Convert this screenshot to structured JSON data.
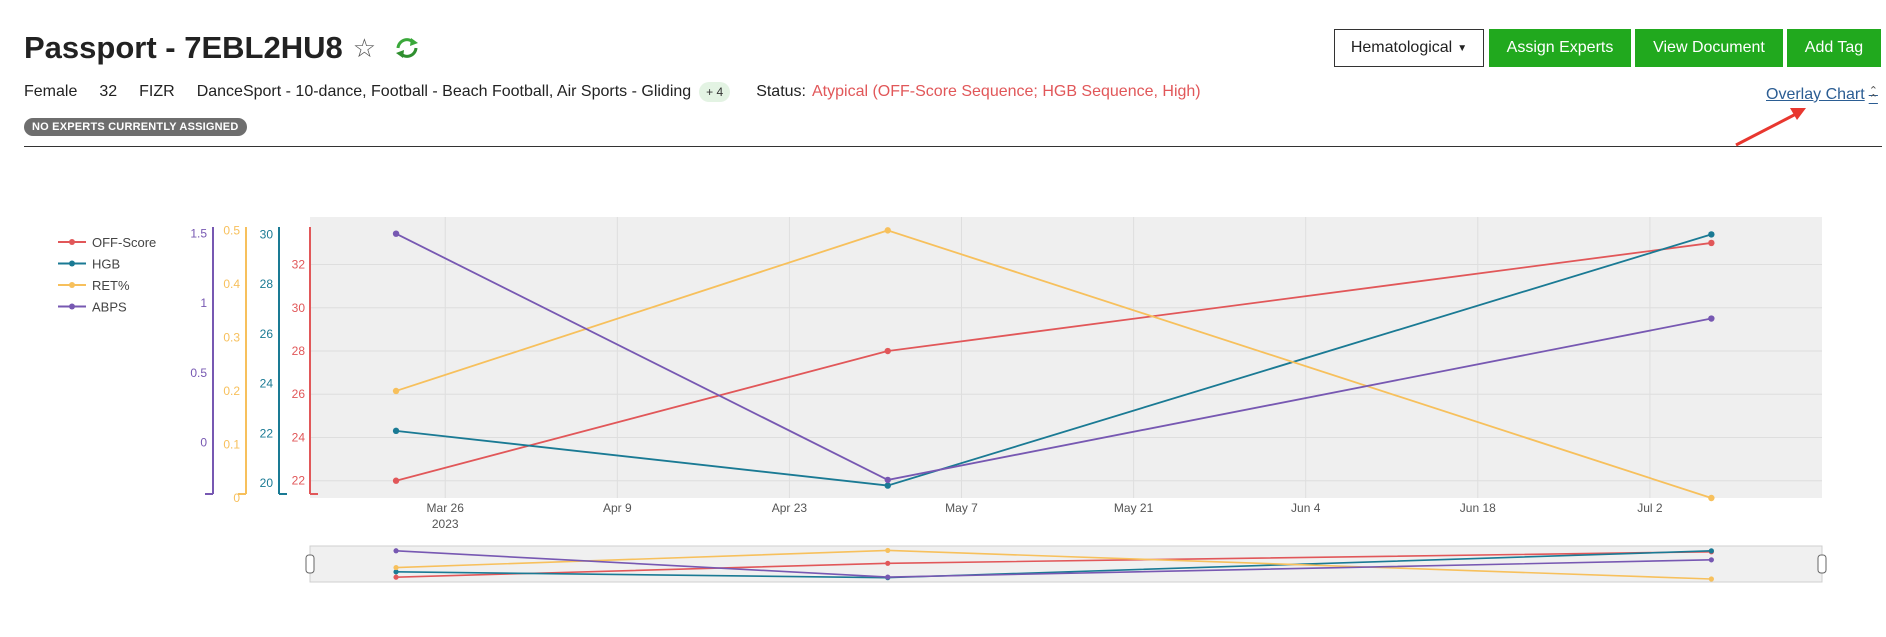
{
  "header": {
    "title": "Passport - 7EBL2HU8",
    "gender": "Female",
    "age": "32",
    "federation": "FIZR",
    "sports": "DanceSport - 10-dance, Football - Beach Football, Air Sports - Gliding",
    "more_sports": "+ 4",
    "status_label": "Status:",
    "status_value": "Atypical (OFF-Score Sequence; HGB Sequence, High)",
    "experts_badge": "NO EXPERTS CURRENTLY ASSIGNED"
  },
  "toolbar": {
    "dropdown_label": "Hematological",
    "assign_label": "Assign Experts",
    "view_label": "View Document",
    "tag_label": "Add Tag"
  },
  "overlay_link": "Overlay Chart",
  "colors": {
    "green": "#21a91e",
    "off_score": "#e15759",
    "hgb": "#1a7a94",
    "ret": "#f7c05c",
    "abps": "#7758b2",
    "link": "#2b5d93",
    "status": "#e15759",
    "annotation_arrow": "#e8372f"
  },
  "icons": [
    "star-icon",
    "refresh-icon",
    "caret-down-icon",
    "chevron-up-icon"
  ],
  "chart_data": {
    "type": "line",
    "x": [
      "2023-03-22",
      "2023-05-01",
      "2023-07-07"
    ],
    "x_ticks": [
      "Mar 26",
      "Apr 9",
      "Apr 23",
      "May 7",
      "May 21",
      "Jun 4",
      "Jun 18",
      "Jul 2"
    ],
    "x_year": "2023",
    "x_range": [
      "2023-03-15",
      "2023-07-16"
    ],
    "grid": true,
    "legend_position": "top-left",
    "range_slider": true,
    "series": [
      {
        "name": "OFF-Score",
        "values": [
          22,
          28,
          33
        ],
        "axis": {
          "range": [
            21.2,
            34.2
          ],
          "ticks": [
            "22",
            "24",
            "26",
            "28",
            "30",
            "32"
          ]
        }
      },
      {
        "name": "HGB",
        "values": [
          22.1,
          19.9,
          30
        ],
        "axis": {
          "range": [
            19.4,
            30.7
          ],
          "ticks": [
            "20",
            "22",
            "24",
            "26",
            "28",
            "30"
          ]
        }
      },
      {
        "name": "RET%",
        "values": [
          0.2,
          0.5,
          0
        ],
        "axis": {
          "range": [
            0,
            0.525
          ],
          "ticks": [
            "0",
            "0.1",
            "0.2",
            "0.3",
            "0.4",
            "0.5"
          ]
        }
      },
      {
        "name": "ABPS",
        "values": [
          1.5,
          -0.27,
          0.89
        ],
        "axis": {
          "range": [
            -0.4,
            1.62
          ],
          "ticks": [
            "0",
            "0.5",
            "1",
            "1.5"
          ]
        }
      }
    ]
  }
}
